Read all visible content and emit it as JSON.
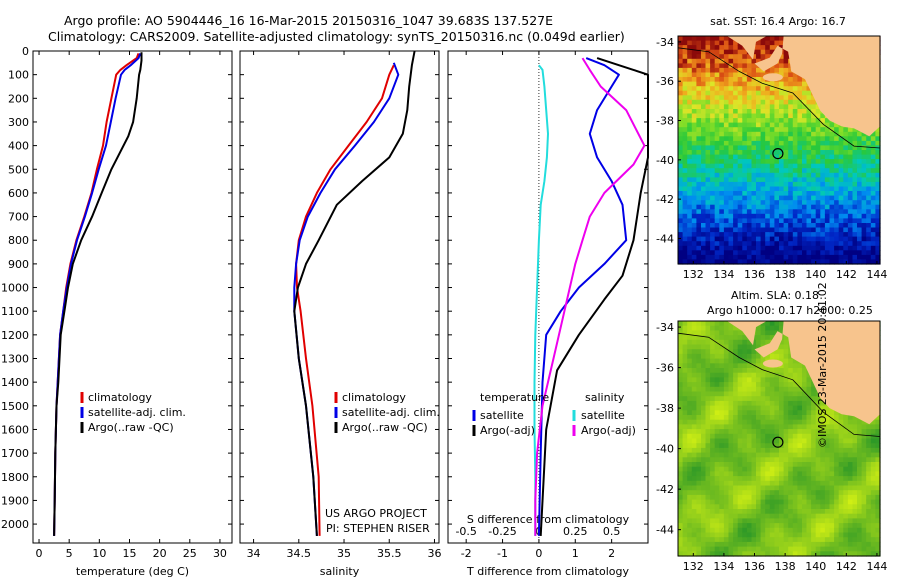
{
  "header": {
    "line1": "Argo profile: AO 5904446_16 16-Mar-2015 20150316_1047 39.683S 137.527E",
    "line2": "Climatology: CARS2009. Satellite-adjusted climatology: synTS_20150316.nc (0.049d earlier)"
  },
  "credits": {
    "project": "US ARGO PROJECT",
    "pi": "PI: STEPHEN RISER",
    "watermark": "©IMOS 23-Mar-2015 20:41:02"
  },
  "colors": {
    "climatology": "#e00000",
    "satellite": "#0000e6",
    "argo": "#000000",
    "cyan": "#22dddd",
    "magenta": "#ee00ee",
    "land": "#f7c48d"
  },
  "chart_data": [
    {
      "type": "line",
      "id": "temperature",
      "xlabel": "temperature (deg C)",
      "ylabel": "",
      "xlim": [
        -1,
        32
      ],
      "ylim": [
        2080,
        0
      ],
      "xticks": [
        0,
        5,
        10,
        15,
        20,
        25,
        30
      ],
      "yticks": [
        0,
        100,
        200,
        300,
        400,
        500,
        600,
        700,
        800,
        900,
        1000,
        1100,
        1200,
        1300,
        1400,
        1500,
        1600,
        1700,
        1800,
        1900,
        2000
      ],
      "legend": [
        "climatology",
        "satellite-adj. clim.",
        "Argo(..raw -QC)"
      ],
      "series": [
        {
          "name": "climatology",
          "color": "#e00000",
          "x": [
            16.5,
            16.2,
            14.5,
            13.5,
            12.8,
            12.0,
            11.2,
            10.6,
            9.6,
            8.7,
            7.5,
            6.2,
            5.2,
            4.5,
            4.0,
            3.5,
            3.1,
            2.9,
            2.7,
            2.6,
            2.5
          ],
          "y": [
            10,
            30,
            60,
            80,
            100,
            200,
            300,
            400,
            500,
            600,
            700,
            800,
            900,
            1000,
            1100,
            1200,
            1400,
            1500,
            1700,
            1900,
            2050
          ]
        },
        {
          "name": "satellite-adj. clim.",
          "color": "#0000e6",
          "x": [
            16.8,
            16.5,
            15.2,
            14.2,
            13.6,
            12.7,
            11.9,
            11.1,
            9.9,
            8.8,
            7.6,
            6.3,
            5.3,
            4.6,
            4.0,
            3.5,
            3.1,
            2.9,
            2.7,
            2.6,
            2.5
          ],
          "y": [
            10,
            30,
            60,
            80,
            100,
            200,
            300,
            400,
            500,
            600,
            700,
            800,
            900,
            1000,
            1100,
            1200,
            1400,
            1500,
            1700,
            1900,
            2050
          ]
        },
        {
          "name": "Argo(..raw -QC)",
          "color": "#000000",
          "x": [
            17.0,
            17.0,
            16.9,
            16.8,
            16.6,
            16.2,
            15.6,
            14.8,
            12.0,
            10.4,
            8.8,
            7.0,
            5.6,
            4.8,
            4.2,
            3.6,
            3.2,
            2.9,
            2.7,
            2.6,
            2.5
          ],
          "y": [
            5,
            40,
            60,
            80,
            100,
            200,
            300,
            360,
            500,
            600,
            700,
            800,
            900,
            1000,
            1100,
            1200,
            1400,
            1500,
            1700,
            1900,
            2050
          ]
        }
      ]
    },
    {
      "type": "line",
      "id": "salinity",
      "xlabel": "salinity",
      "ylabel": "",
      "xlim": [
        33.85,
        36.05
      ],
      "ylim": [
        2080,
        0
      ],
      "xticks": [
        34,
        34.5,
        35,
        35.5,
        36
      ],
      "legend": [
        "climatology",
        "satellite-adj. clim.",
        "Argo(..raw -QC)"
      ],
      "series": [
        {
          "name": "climatology",
          "color": "#e00000",
          "x": [
            35.55,
            35.5,
            35.42,
            35.25,
            35.05,
            34.85,
            34.7,
            34.58,
            34.5,
            34.47,
            34.48,
            34.52,
            34.58,
            34.65,
            34.72,
            34.73
          ],
          "y": [
            60,
            100,
            200,
            300,
            400,
            500,
            600,
            700,
            800,
            900,
            1000,
            1100,
            1300,
            1500,
            1800,
            2050
          ]
        },
        {
          "name": "satellite-adj. clim.",
          "color": "#0000e6",
          "x": [
            35.55,
            35.6,
            35.5,
            35.33,
            35.12,
            34.9,
            34.74,
            34.6,
            34.51,
            34.47,
            34.45,
            34.45,
            34.5,
            34.58,
            34.66,
            34.7
          ],
          "y": [
            50,
            100,
            200,
            300,
            400,
            500,
            600,
            700,
            800,
            900,
            1000,
            1100,
            1300,
            1500,
            1800,
            2050
          ]
        },
        {
          "name": "Argo(..raw -QC)",
          "color": "#000000",
          "x": [
            35.78,
            35.75,
            35.72,
            35.7,
            35.65,
            35.5,
            35.2,
            34.92,
            34.72,
            34.58,
            34.49,
            34.45,
            34.5,
            34.58,
            34.66,
            34.7
          ],
          "y": [
            0,
            60,
            150,
            250,
            350,
            450,
            550,
            650,
            800,
            900,
            1000,
            1100,
            1300,
            1500,
            1800,
            2050
          ]
        }
      ]
    },
    {
      "type": "line",
      "id": "difference",
      "xlabel": "T difference from climatology",
      "xlabel2": "S difference from climatology",
      "xlim": [
        -2.5,
        3.0
      ],
      "ylim": [
        2080,
        0
      ],
      "xticks": [
        -2,
        -1,
        0,
        1,
        2
      ],
      "xticks2": [
        "-0.5",
        "-0.25",
        "0",
        "0.25",
        "0.5"
      ],
      "legend_temperature": {
        "title": "temperature",
        "items": [
          "satellite",
          "Argo(-adj)"
        ]
      },
      "legend_salinity": {
        "title": "salinity",
        "items": [
          "satellite",
          "Argo(-adj)"
        ]
      },
      "series": [
        {
          "name": "satellite",
          "group": "temperature",
          "color": "#0000e6",
          "x": [
            1.3,
            1.8,
            2.2,
            2.0,
            1.6,
            1.4,
            1.6,
            2.0,
            2.3,
            2.4,
            1.8,
            1.1,
            0.6,
            0.2,
            0.1,
            0.05,
            0.0
          ],
          "y": [
            30,
            60,
            100,
            150,
            250,
            350,
            450,
            550,
            650,
            800,
            900,
            1000,
            1100,
            1200,
            1400,
            1700,
            2050
          ]
        },
        {
          "name": "Argo(-adj)",
          "group": "temperature",
          "color": "#000000",
          "x": [
            1.6,
            2.2,
            2.6,
            3.0,
            3.0,
            3.0,
            3.0,
            3.0,
            2.8,
            2.6,
            2.3,
            1.8,
            1.1,
            0.5,
            0.2,
            0.05
          ],
          "y": [
            30,
            60,
            80,
            100,
            150,
            250,
            350,
            450,
            600,
            800,
            950,
            1050,
            1200,
            1350,
            1600,
            2050
          ]
        },
        {
          "name": "satellite",
          "group": "salinity",
          "color": "#22dddd",
          "x": [
            0.0,
            0.1,
            0.15,
            0.2,
            0.25,
            0.22,
            0.15,
            0.05,
            0.0,
            -0.05,
            -0.1,
            -0.12,
            -0.12,
            -0.1,
            -0.1
          ],
          "y": [
            60,
            80,
            150,
            250,
            350,
            450,
            550,
            650,
            800,
            1000,
            1200,
            1400,
            1600,
            1800,
            2050
          ]
        },
        {
          "name": "Argo(-adj)",
          "group": "salinity",
          "color": "#ee00ee",
          "x": [
            1.2,
            1.4,
            1.7,
            2.4,
            2.9,
            2.6,
            1.8,
            1.4,
            1.2,
            1.0,
            0.7,
            0.4,
            0.1,
            -0.05,
            -0.1,
            -0.1
          ],
          "y": [
            30,
            80,
            150,
            250,
            400,
            480,
            600,
            700,
            800,
            900,
            1100,
            1300,
            1500,
            1700,
            1900,
            2050
          ]
        }
      ]
    },
    {
      "type": "heatmap",
      "id": "sst-map",
      "title": "sat. SST: 16.4 Argo: 16.7",
      "xlim": [
        131,
        144.2
      ],
      "ylim": [
        -45.3,
        -33.7
      ],
      "xticks": [
        132,
        134,
        136,
        138,
        140,
        142,
        144
      ],
      "yticks": [
        -34,
        -36,
        -38,
        -40,
        -42,
        -44
      ],
      "marker": {
        "lon": 137.527,
        "lat": -39.683
      }
    },
    {
      "type": "heatmap",
      "id": "sla-map",
      "title": "Altim. SLA: 0.18",
      "subtitle": "Argo h1000: 0.17 h2000: 0.25",
      "xlim": [
        131,
        144.2
      ],
      "ylim": [
        -45.3,
        -33.7
      ],
      "xticks": [
        132,
        134,
        136,
        138,
        140,
        142,
        144
      ],
      "yticks": [
        -34,
        -36,
        -38,
        -40,
        -42,
        -44
      ],
      "marker": {
        "lon": 137.527,
        "lat": -39.683
      }
    }
  ]
}
